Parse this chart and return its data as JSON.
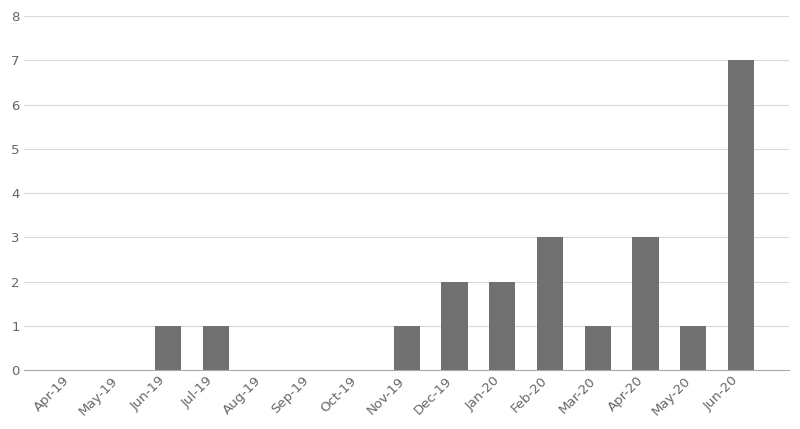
{
  "categories": [
    "Apr-19",
    "May-19",
    "Jun-19",
    "Jul-19",
    "Aug-19",
    "Sep-19",
    "Oct-19",
    "Nov-19",
    "Dec-19",
    "Jan-20",
    "Feb-20",
    "Mar-20",
    "Apr-20",
    "May-20",
    "Jun-20"
  ],
  "values": [
    0,
    0,
    1,
    1,
    0,
    0,
    0,
    1,
    2,
    2,
    3,
    1,
    3,
    1,
    7
  ],
  "bar_color": "#717171",
  "ylim": [
    0,
    8
  ],
  "yticks": [
    0,
    1,
    2,
    3,
    4,
    5,
    6,
    7,
    8
  ],
  "background_color": "#ffffff",
  "grid_color": "#d9d9d9",
  "tick_label_fontsize": 9.5,
  "bar_width": 0.55,
  "xlabel_rotation": 45,
  "xlabel_ha": "right"
}
